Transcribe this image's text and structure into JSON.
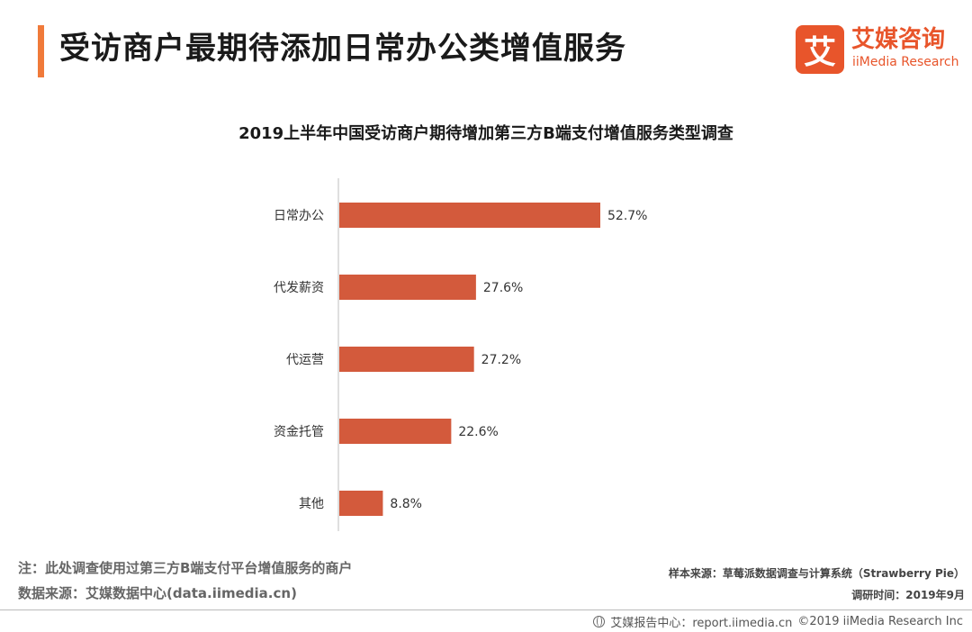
{
  "header": {
    "title": "受访商户最期待添加日常办公类增值服务",
    "accent_color": "#f07a3a"
  },
  "logo": {
    "mark_char": "艾",
    "cn": "艾媒咨询",
    "en": "iiMedia Research",
    "color": "#e8552b"
  },
  "chart_data": {
    "type": "bar",
    "orientation": "horizontal",
    "title": "2019上半年中国受访商户期待增加第三方B端支付增值服务类型调查",
    "categories": [
      "日常办公",
      "代发薪资",
      "代运营",
      "资金托管",
      "其他"
    ],
    "values": [
      52.7,
      27.6,
      27.2,
      22.6,
      8.8
    ],
    "value_labels": [
      "52.7%",
      "27.6%",
      "27.2%",
      "22.6%",
      "8.8%"
    ],
    "unit": "%",
    "xlim": [
      0,
      100
    ],
    "grid": false,
    "bar_color": "#d35a3c"
  },
  "footer": {
    "note": "注：此处调查使用过第三方B端支付平台增值服务的商户",
    "source": "数据来源：艾媒数据中心(data.iimedia.cn)",
    "sample": "样本来源：草莓派数据调查与计算系统（Strawberry Pie）",
    "survey_time": "调研时间：2019年9月",
    "copyright_center": "艾媒报告中心：report.iimedia.cn",
    "copyright": "©2019  iiMedia Research Inc"
  }
}
